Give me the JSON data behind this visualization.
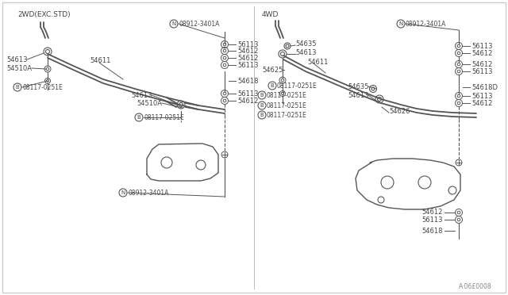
{
  "background_color": "#ffffff",
  "line_color": "#555555",
  "text_color": "#444444",
  "fig_width": 6.4,
  "fig_height": 3.72,
  "dpi": 100,
  "left_label": "2WD(EXC.STD)",
  "right_label": "4WD",
  "footer": "A·06£0008",
  "border_color": "#aaaaaa"
}
